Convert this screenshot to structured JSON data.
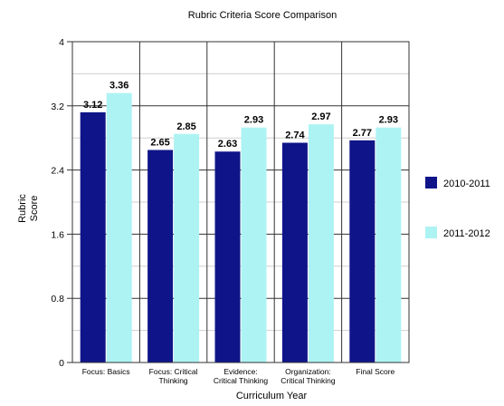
{
  "chart_data": {
    "type": "bar",
    "title": "Rubric Criteria Score Comparison",
    "xlabel": "Curriculum Year",
    "ylabel": [
      "Rubric",
      "Score"
    ],
    "ylim": [
      0,
      4
    ],
    "yticks": [
      "0",
      "0.8",
      "1.6",
      "2.4",
      "3.2",
      "4"
    ],
    "ytick_values": [
      0,
      0.8,
      1.6,
      2.4,
      3.2,
      4
    ],
    "grid": true,
    "legend_position": "right",
    "categories": [
      [
        "Focus: Basics"
      ],
      [
        "Focus: Critical",
        "Thinking"
      ],
      [
        "Evidence:",
        "Critical Thinking"
      ],
      [
        "Organization:",
        "Critical Thinking"
      ],
      [
        "Final Score"
      ]
    ],
    "series": [
      {
        "name": "2010-2011",
        "color": "#0f1588",
        "values": [
          3.12,
          2.65,
          2.63,
          2.74,
          2.77
        ],
        "labels": [
          "3.12",
          "2.65",
          "2.63",
          "2.74",
          "2.77"
        ]
      },
      {
        "name": "2011-2012",
        "color": "#aef3f3",
        "values": [
          3.36,
          2.85,
          2.93,
          2.97,
          2.93
        ],
        "labels": [
          "3.36",
          "2.85",
          "2.93",
          "2.97",
          "2.93"
        ]
      }
    ]
  }
}
